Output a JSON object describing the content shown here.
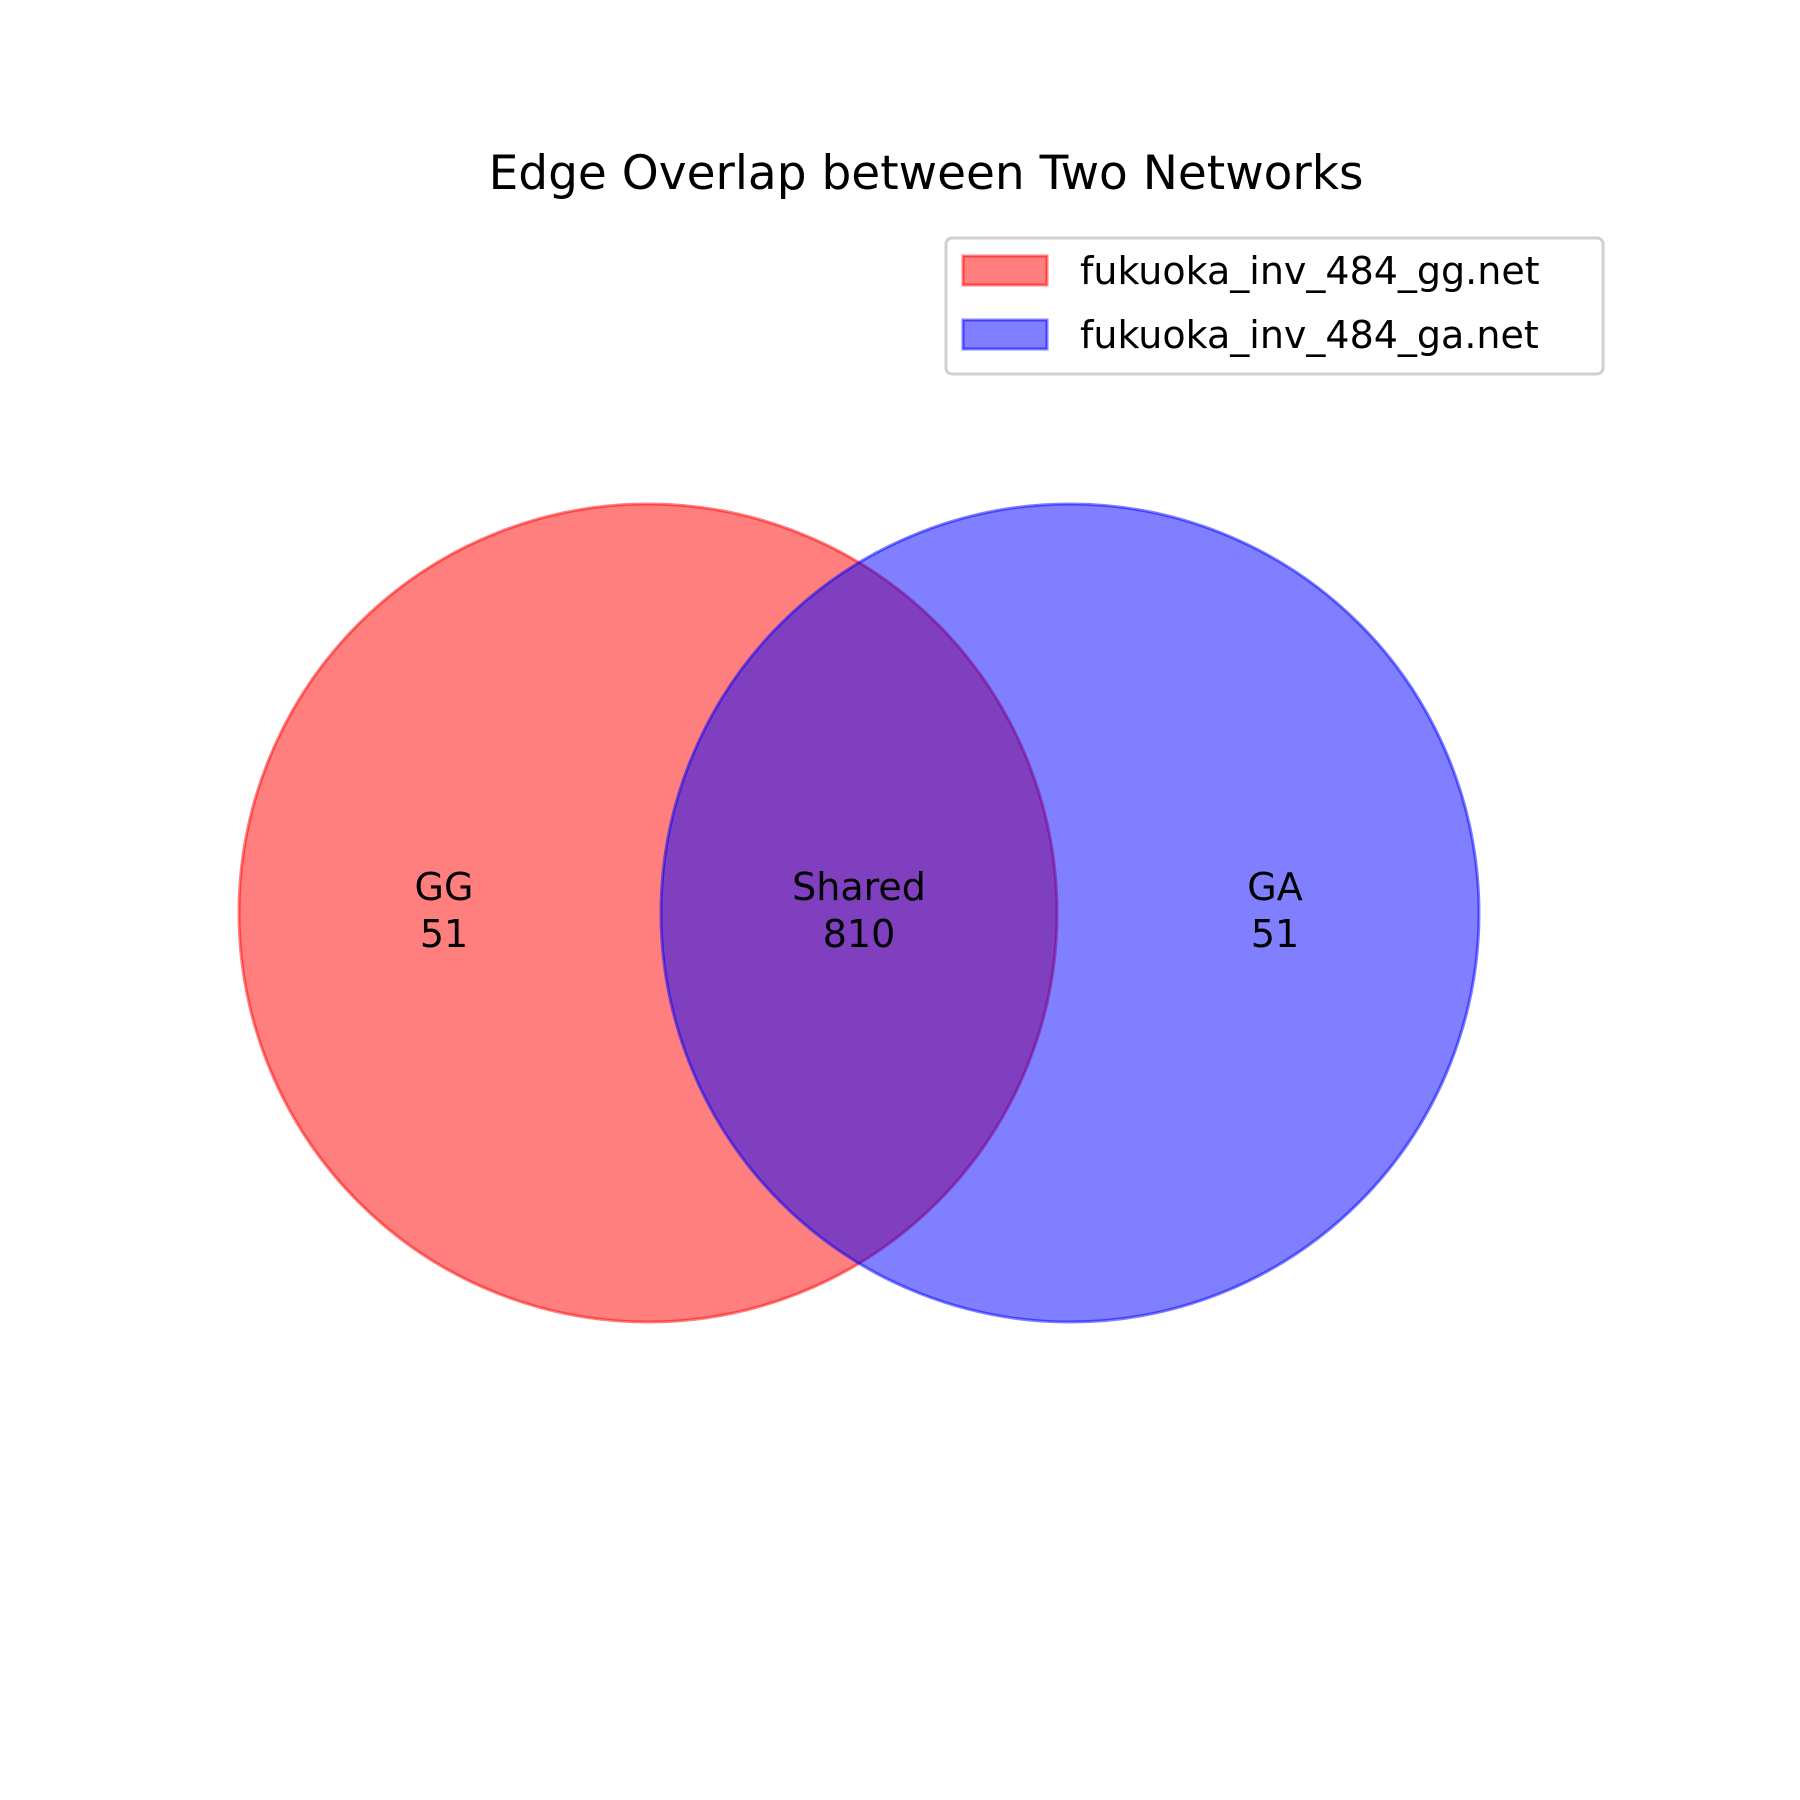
{
  "title": "Edge Overlap between Two Networks",
  "legend": {
    "placement": "top-right",
    "entries": [
      {
        "label": "fukuoka_inv_484_gg.net",
        "color": "#ff0000"
      },
      {
        "label": "fukuoka_inv_484_ga.net",
        "color": "#0000ff"
      }
    ]
  },
  "regions": {
    "left": {
      "label": "GG",
      "count": "51"
    },
    "shared": {
      "label": "Shared",
      "count": "810"
    },
    "right": {
      "label": "GA",
      "count": "51"
    }
  },
  "colors": {
    "left_fill": "#ff0000",
    "right_fill": "#0000ff",
    "fill_opacity": "0.5"
  }
}
